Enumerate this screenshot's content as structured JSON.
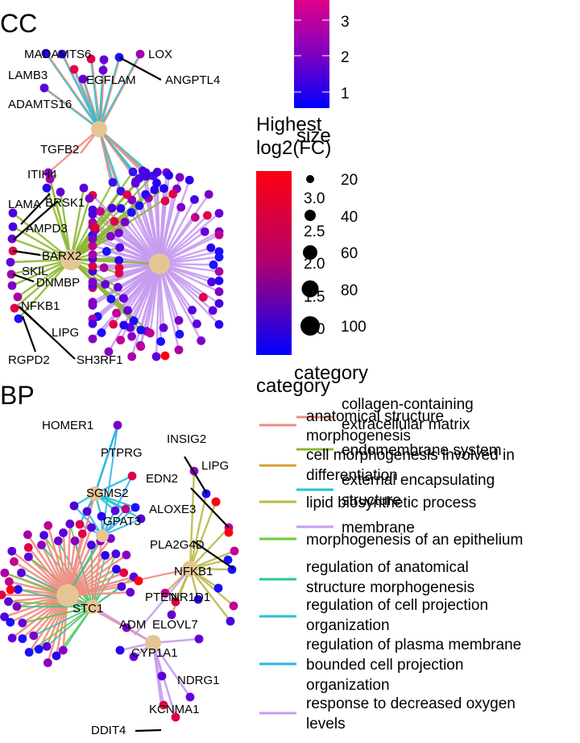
{
  "chart_data": [
    {
      "type": "network",
      "panel": "CC",
      "hub_color": "#E6C595",
      "category_colors": {
        "collagen-containing extracellular matrix": "#F08C80",
        "endomembrane system": "#8DB832",
        "external encapsulating structure": "#22C3D3",
        "membrane": "#C79BF0"
      },
      "hubs": [
        "collagen-containing extracellular matrix",
        "endomembrane system",
        "external encapsulating structure",
        "membrane"
      ],
      "labeled_genes": [
        "MADAMTS6",
        "LOX",
        "LAMB3",
        "EGFLAM",
        "ANGPTL4",
        "ADAMTS16",
        "TGFB2",
        "ITIH4",
        "LAMA",
        "BRSK1",
        "AMPD3",
        "BARX2",
        "SKIL",
        "DNMBP",
        "NFKB1",
        "LIPG",
        "RGPD2",
        "SH3RF1"
      ]
    },
    {
      "type": "network",
      "panel": "BP",
      "hub_color": "#E6C595",
      "category_colors": {
        "anatomical structure morphogenesis": "#F08C80",
        "cell morphogenesis involved in differentiation": "#D7A02B",
        "lipid biosynthetic process": "#BDB84A",
        "morphogenesis of an epithelium": "#6CC93A",
        "regulation of anatomical structure morphogenesis": "#2CC49A",
        "regulation of cell projection organization": "#22C3D3",
        "regulation of plasma membrane bounded cell projection organization": "#2AB3E8",
        "response to decreased oxygen levels": "#C79BF0"
      },
      "labeled_genes": [
        "HOMER1",
        "PTPRG",
        "INSIG2",
        "EDN2",
        "LIPG",
        "SGMS2",
        "ALOXE3",
        "GPAT3",
        "PLA2G4D",
        "NFKB1",
        "PTEN",
        "NR1D1",
        "STC1",
        "ADM",
        "ELOVL7",
        "CYP1A1",
        "NDRG1",
        "KCNMA1",
        "DDIT4"
      ]
    }
  ],
  "panel_titles": {
    "cc": "CC",
    "bp": "BP"
  },
  "legend_fc_top": {
    "ticks": [
      "3",
      "2",
      "1"
    ],
    "colors": [
      "#0000FF",
      "#8000C0",
      "#E0008A"
    ]
  },
  "legend_fc": {
    "title_line1": "Highest",
    "title_line2": "log2(FC)",
    "ticks": [
      "3.0",
      "2.5",
      "2.0",
      "1.5",
      "1.0"
    ],
    "colors": [
      "#0000FF",
      "#C00060",
      "#FF0010"
    ]
  },
  "legend_size": {
    "title": "size",
    "items": [
      "20",
      "40",
      "60",
      "80",
      "100"
    ]
  },
  "legend_category_cc": {
    "title": "category",
    "items": [
      {
        "line1": "collagen-containing",
        "line2": "extracellular matrix",
        "color": "#F08C80"
      },
      {
        "line1": "endomembrane system",
        "line2": "",
        "color": "#8DB832"
      },
      {
        "line1": "external encapsulating",
        "line2": "structure",
        "color": "#22C3D3"
      },
      {
        "line1": "membrane",
        "line2": "",
        "color": "#C79BF0"
      }
    ]
  },
  "legend_category_bp": {
    "title": "category",
    "items": [
      {
        "line1": "anatomical structure",
        "line2": "morphogenesis",
        "line3": "",
        "color": "#F08C80"
      },
      {
        "line1": "cell morphogenesis involved in",
        "line2": "differentiation",
        "line3": "",
        "color": "#D7A02B"
      },
      {
        "line1": "lipid biosynthetic process",
        "line2": "",
        "line3": "",
        "color": "#BDB84A"
      },
      {
        "line1": "morphogenesis of an epithelium",
        "line2": "",
        "line3": "",
        "color": "#6CC93A"
      },
      {
        "line1": "regulation of anatomical",
        "line2": "structure morphogenesis",
        "line3": "",
        "color": "#2CC49A"
      },
      {
        "line1": "regulation of cell projection",
        "line2": "organization",
        "line3": "",
        "color": "#22C3D3"
      },
      {
        "line1": "regulation of plasma membrane",
        "line2": "bounded cell projection",
        "line3": "organization",
        "color": "#2AB3E8"
      },
      {
        "line1": "response to decreased oxygen",
        "line2": "levels",
        "line3": "",
        "color": "#C79BF0"
      }
    ]
  }
}
